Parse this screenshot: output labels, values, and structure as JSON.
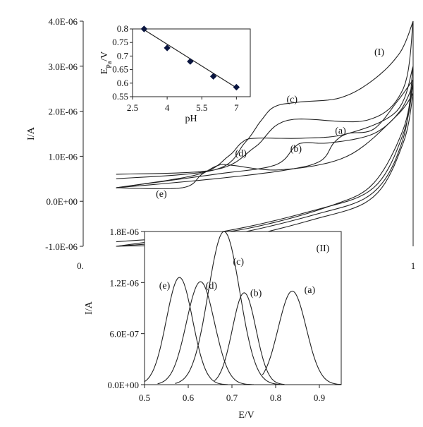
{
  "chart_data": [
    {
      "id": "main",
      "type": "line",
      "panel_label": "(I)",
      "xlabel": "",
      "ylabel": "I/A",
      "xlim": [
        0,
        1
      ],
      "ylim": [
        -1e-06,
        4e-06
      ],
      "x_tick_labels": [
        {
          "x": 0,
          "label": "0."
        },
        {
          "x": 1,
          "label": "1"
        }
      ],
      "y_tick_labels": [
        {
          "y": 4e-06,
          "label": "4.0E-06"
        },
        {
          "y": 3e-06,
          "label": "3.0E-06"
        },
        {
          "y": 2e-06,
          "label": "2.0E-06"
        },
        {
          "y": 1e-06,
          "label": "1.0E-06"
        },
        {
          "y": 0.0,
          "label": "0.0E+00"
        },
        {
          "y": -1e-06,
          "label": "-1.0E-06"
        }
      ],
      "curve_labels": [
        {
          "label": "(a)",
          "x": 0.78,
          "y": 1.5e-06
        },
        {
          "label": "(b)",
          "x": 0.645,
          "y": 1.1e-06
        },
        {
          "label": "(c)",
          "x": 0.633,
          "y": 2.2e-06
        },
        {
          "label": "(d)",
          "x": 0.478,
          "y": 1e-06
        },
        {
          "label": "(e)",
          "x": 0.237,
          "y": 1e-07
        }
      ],
      "series": [
        {
          "label": "(a)",
          "forward": [
            [
              0.1,
              3e-07
            ],
            [
              0.4,
              5e-07
            ],
            [
              0.62,
              7e-07
            ],
            [
              0.72,
              9e-07
            ],
            [
              0.76,
              1.3e-06
            ],
            [
              0.8,
              1.5e-06
            ],
            [
              0.88,
              1.6e-06
            ],
            [
              0.95,
              2.2e-06
            ],
            [
              1.0,
              2.7e-06
            ]
          ],
          "reverse": [
            [
              1.0,
              2.7e-06
            ],
            [
              0.97,
              1.6e-06
            ],
            [
              0.88,
              4e-07
            ],
            [
              0.75,
              -1e-07
            ],
            [
              0.5,
              -6e-07
            ],
            [
              0.2,
              -9e-07
            ],
            [
              0.1,
              -1e-06
            ]
          ]
        },
        {
          "label": "(b)",
          "forward": [
            [
              0.1,
              3e-07
            ],
            [
              0.4,
              6e-07
            ],
            [
              0.58,
              8e-07
            ],
            [
              0.64,
              1.2e-06
            ],
            [
              0.67,
              1.3e-06
            ],
            [
              0.75,
              1.3e-06
            ],
            [
              0.88,
              1.5e-06
            ],
            [
              0.96,
              2e-06
            ],
            [
              1.0,
              2.6e-06
            ]
          ],
          "reverse": [
            [
              1.0,
              2.6e-06
            ],
            [
              0.97,
              1.5e-06
            ],
            [
              0.88,
              3e-07
            ],
            [
              0.7,
              -2e-07
            ],
            [
              0.4,
              -7e-07
            ],
            [
              0.1,
              -9e-07
            ]
          ]
        },
        {
          "label": "(c)",
          "forward": [
            [
              0.1,
              5e-07
            ],
            [
              0.4,
              7e-07
            ],
            [
              0.49,
              1.3e-06
            ],
            [
              0.54,
              1.8e-06
            ],
            [
              0.58,
              2.1e-06
            ],
            [
              0.65,
              2.2e-06
            ],
            [
              0.78,
              2.3e-06
            ],
            [
              0.88,
              2.7e-06
            ],
            [
              0.96,
              3.3e-06
            ],
            [
              1.0,
              4e-06
            ]
          ],
          "reverse": [
            [
              1.0,
              4e-06
            ],
            [
              0.97,
              2.5e-06
            ],
            [
              0.86,
              1.8e-06
            ],
            [
              0.62,
              1.8e-06
            ],
            [
              0.52,
              1.2e-06
            ],
            [
              0.4,
              7e-07
            ],
            [
              0.1,
              6e-07
            ]
          ]
        },
        {
          "label": "(d)",
          "forward": [
            [
              0.1,
              3e-07
            ],
            [
              0.35,
              6e-07
            ],
            [
              0.44,
              1e-06
            ],
            [
              0.48,
              1.3e-06
            ],
            [
              0.52,
              1.4e-06
            ],
            [
              0.66,
              1.4e-06
            ],
            [
              0.8,
              1.5e-06
            ],
            [
              0.95,
              2e-06
            ],
            [
              1.0,
              3e-06
            ]
          ],
          "reverse": [
            [
              1.0,
              3e-06
            ],
            [
              0.97,
              1.4e-06
            ],
            [
              0.88,
              2e-07
            ],
            [
              0.7,
              -3e-07
            ],
            [
              0.4,
              -8e-07
            ],
            [
              0.1,
              -1e-06
            ]
          ]
        },
        {
          "label": "(e)",
          "forward": [
            [
              0.1,
              3e-07
            ],
            [
              0.3,
              3e-07
            ],
            [
              0.36,
              6e-07
            ],
            [
              0.41,
              8e-07
            ],
            [
              0.45,
              8e-07
            ],
            [
              0.6,
              7e-07
            ],
            [
              0.8,
              1e-06
            ],
            [
              0.95,
              1.9e-06
            ],
            [
              1.0,
              2.4e-06
            ]
          ],
          "reverse": [
            [
              1.0,
              2.4e-06
            ],
            [
              0.97,
              1.3e-06
            ],
            [
              0.88,
              1e-07
            ],
            [
              0.7,
              -4e-07
            ],
            [
              0.4,
              -9e-07
            ],
            [
              0.1,
              -1e-06
            ]
          ]
        }
      ]
    },
    {
      "id": "inset_ph",
      "type": "scatter",
      "xlabel": "pH",
      "ylabel": "E_Pa/V",
      "ylabel_main": "E",
      "ylabel_sub": "Pa",
      "ylabel_unit": "/V",
      "xlim": [
        2.5,
        7.6
      ],
      "ylim": [
        0.55,
        0.8
      ],
      "x_ticks": [
        2.5,
        4,
        5.5,
        7
      ],
      "x_tick_labels": [
        "2.5",
        "4",
        "5.5",
        "7"
      ],
      "y_ticks": [
        0.55,
        0.6,
        0.65,
        0.7,
        0.75,
        0.8
      ],
      "y_tick_labels": [
        "0.55",
        "0.6",
        "0.65",
        "0.7",
        "0.75",
        "0.8"
      ],
      "x": [
        3.0,
        4.0,
        5.0,
        6.0,
        7.0
      ],
      "y": [
        0.8,
        0.73,
        0.68,
        0.625,
        0.585
      ],
      "fit_line": {
        "x": [
          3.0,
          7.0
        ],
        "y": [
          0.797,
          0.583
        ]
      }
    },
    {
      "id": "inset_dpv",
      "type": "line",
      "panel_label": "(II)",
      "xlabel": "E/V",
      "ylabel": "I/A",
      "xlim": [
        0.5,
        0.95
      ],
      "ylim": [
        0,
        1.8e-06
      ],
      "x_ticks": [
        0.5,
        0.6,
        0.7,
        0.8,
        0.9
      ],
      "x_tick_labels": [
        "0.5",
        "0.6",
        "0.7",
        "0.8",
        "0.9"
      ],
      "y_ticks": [
        0,
        6e-07,
        1.2e-06,
        1.8e-06
      ],
      "y_tick_labels": [
        "0.0E+00",
        "6.0E-07",
        "1.2E-06",
        "1.8E-06"
      ],
      "curve_labels": [
        {
          "label": "(a)",
          "x": 0.878,
          "y": 1.08e-06
        },
        {
          "label": "(b)",
          "x": 0.755,
          "y": 1.04e-06
        },
        {
          "label": "(c)",
          "x": 0.715,
          "y": 1.41e-06
        },
        {
          "label": "(d)",
          "x": 0.653,
          "y": 1.13e-06
        },
        {
          "label": "(e)",
          "x": 0.546,
          "y": 1.13e-06
        }
      ],
      "series": [
        {
          "label": "(a)",
          "peak_E": 0.838,
          "peak_I": 1.1e-06,
          "width": 0.032,
          "range": [
            0.77,
            0.95
          ]
        },
        {
          "label": "(b)",
          "peak_E": 0.728,
          "peak_I": 1.08e-06,
          "width": 0.027,
          "range": [
            0.66,
            0.82
          ]
        },
        {
          "label": "(c)",
          "peak_E": 0.682,
          "peak_I": 1.8e-06,
          "width": 0.036,
          "range": [
            0.57,
            0.81
          ]
        },
        {
          "label": "(d)",
          "peak_E": 0.628,
          "peak_I": 1.21e-06,
          "width": 0.032,
          "range": [
            0.53,
            0.75
          ]
        },
        {
          "label": "(e)",
          "peak_E": 0.58,
          "peak_I": 1.26e-06,
          "width": 0.03,
          "range": [
            0.5,
            0.69
          ]
        }
      ]
    }
  ]
}
